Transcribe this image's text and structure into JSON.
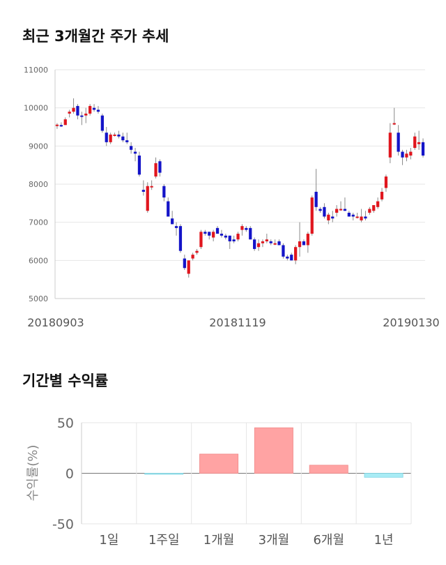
{
  "sections": {
    "price_title": "최근 3개월간 주가 추세",
    "return_title": "기간별 수익률"
  },
  "chart_data": [
    {
      "type": "candlestick",
      "title": "최근 3개월간 주가 추세",
      "ylim": [
        5000,
        11000
      ],
      "y_ticks": [
        "5000",
        "6000",
        "7000",
        "8000",
        "9000",
        "10000",
        "11000"
      ],
      "x_ticks": [
        "20180903",
        "20181119",
        "20190130"
      ],
      "grid": true,
      "colors": {
        "up": "#e0161e",
        "down": "#1414c8",
        "wick": "#888888"
      },
      "candles": [
        [
          9530,
          9600,
          9450,
          9560
        ],
        [
          9550,
          9620,
          9500,
          9520
        ],
        [
          9550,
          9750,
          9550,
          9700
        ],
        [
          9850,
          9950,
          9750,
          9900
        ],
        [
          9900,
          10250,
          9850,
          10000
        ],
        [
          10050,
          10100,
          9700,
          9800
        ],
        [
          9800,
          9900,
          9550,
          9780
        ],
        [
          9800,
          10000,
          9600,
          9850
        ],
        [
          9850,
          10100,
          9800,
          10050
        ],
        [
          10000,
          10100,
          9900,
          9950
        ],
        [
          9950,
          10050,
          9850,
          9900
        ],
        [
          9800,
          9850,
          9350,
          9400
        ],
        [
          9350,
          9500,
          9000,
          9100
        ],
        [
          9100,
          9350,
          9050,
          9300
        ],
        [
          9300,
          9350,
          9250,
          9300
        ],
        [
          9300,
          9400,
          9200,
          9250
        ],
        [
          9250,
          9350,
          9100,
          9150
        ],
        [
          9150,
          9350,
          9050,
          9100
        ],
        [
          9000,
          9100,
          8800,
          8900
        ],
        [
          8850,
          8950,
          8600,
          8800
        ],
        [
          8750,
          8850,
          8200,
          8250
        ],
        [
          7850,
          8100,
          7700,
          7800
        ],
        [
          7300,
          8050,
          7250,
          7950
        ],
        [
          7950,
          8100,
          7850,
          7950
        ],
        [
          8200,
          8700,
          8150,
          8550
        ],
        [
          8600,
          8650,
          8200,
          8300
        ],
        [
          7950,
          8000,
          7550,
          7650
        ],
        [
          7550,
          7650,
          7150,
          7150
        ],
        [
          7100,
          7300,
          6950,
          6950
        ],
        [
          6900,
          7000,
          6650,
          6850
        ],
        [
          6900,
          6950,
          6200,
          6250
        ],
        [
          6050,
          6150,
          5750,
          5800
        ],
        [
          5650,
          6000,
          5550,
          6000
        ],
        [
          6050,
          6200,
          6000,
          6150
        ],
        [
          6200,
          6300,
          6150,
          6250
        ],
        [
          6350,
          6800,
          6300,
          6750
        ],
        [
          6750,
          6800,
          6650,
          6700
        ],
        [
          6750,
          6750,
          6550,
          6650
        ],
        [
          6600,
          6800,
          6500,
          6750
        ],
        [
          6850,
          6900,
          6700,
          6700
        ],
        [
          6700,
          6800,
          6600,
          6650
        ],
        [
          6650,
          6700,
          6550,
          6600
        ],
        [
          6650,
          6650,
          6300,
          6500
        ],
        [
          6550,
          6650,
          6450,
          6500
        ],
        [
          6550,
          6750,
          6500,
          6700
        ],
        [
          6800,
          6950,
          6650,
          6900
        ],
        [
          6850,
          6900,
          6750,
          6800
        ],
        [
          6850,
          6900,
          6550,
          6550
        ],
        [
          6550,
          6600,
          6250,
          6300
        ],
        [
          6350,
          6550,
          6250,
          6450
        ],
        [
          6450,
          6550,
          6350,
          6500
        ],
        [
          6500,
          6700,
          6450,
          6550
        ],
        [
          6500,
          6550,
          6400,
          6450
        ],
        [
          6450,
          6550,
          6400,
          6450
        ],
        [
          6500,
          6550,
          6400,
          6400
        ],
        [
          6400,
          6450,
          6050,
          6100
        ],
        [
          6100,
          6150,
          6000,
          6050
        ],
        [
          6150,
          6200,
          6000,
          6000
        ],
        [
          6000,
          6400,
          5900,
          6350
        ],
        [
          6350,
          7000,
          6100,
          6500
        ],
        [
          6500,
          6550,
          6400,
          6400
        ],
        [
          6400,
          6750,
          6200,
          6700
        ],
        [
          6700,
          7700,
          6650,
          7650
        ],
        [
          7800,
          8400,
          7300,
          7400
        ],
        [
          7350,
          7400,
          7250,
          7300
        ],
        [
          7400,
          7500,
          7100,
          7150
        ],
        [
          7050,
          7250,
          6950,
          7200
        ],
        [
          7150,
          7300,
          7000,
          7100
        ],
        [
          7250,
          7450,
          7150,
          7350
        ],
        [
          7350,
          7550,
          7300,
          7350
        ],
        [
          7350,
          7650,
          7300,
          7300
        ],
        [
          7250,
          7300,
          7150,
          7150
        ],
        [
          7200,
          7250,
          7050,
          7150
        ],
        [
          7150,
          7250,
          7100,
          7150
        ],
        [
          7050,
          7350,
          7000,
          7150
        ],
        [
          7150,
          7300,
          7050,
          7100
        ],
        [
          7250,
          7400,
          7200,
          7350
        ],
        [
          7300,
          7450,
          7250,
          7450
        ],
        [
          7400,
          7650,
          7350,
          7550
        ],
        [
          7600,
          7900,
          7550,
          7800
        ],
        [
          7900,
          8250,
          7800,
          8200
        ],
        [
          8700,
          9600,
          8550,
          9350
        ],
        [
          9600,
          10000,
          9550,
          9600
        ],
        [
          9350,
          9550,
          8750,
          8850
        ],
        [
          8850,
          8900,
          8500,
          8700
        ],
        [
          8700,
          8900,
          8600,
          8800
        ],
        [
          8750,
          8950,
          8650,
          8850
        ],
        [
          8950,
          9350,
          8900,
          9250
        ],
        [
          9050,
          9400,
          8900,
          9100
        ],
        [
          9100,
          9200,
          8700,
          8750
        ]
      ]
    },
    {
      "type": "bar",
      "title": "기간별 수익률",
      "categories": [
        "1일",
        "1주일",
        "1개월",
        "3개월",
        "6개월",
        "1년"
      ],
      "values": [
        0,
        -0.5,
        19,
        45,
        8,
        -4
      ],
      "ylabel": "수익률(%)",
      "ylim": [
        -50,
        50
      ],
      "y_ticks": [
        "50",
        "0",
        "-50"
      ],
      "grid": true,
      "colors": {
        "positive": "#ffa3a3",
        "negative": "#a8ecf5"
      }
    }
  ]
}
